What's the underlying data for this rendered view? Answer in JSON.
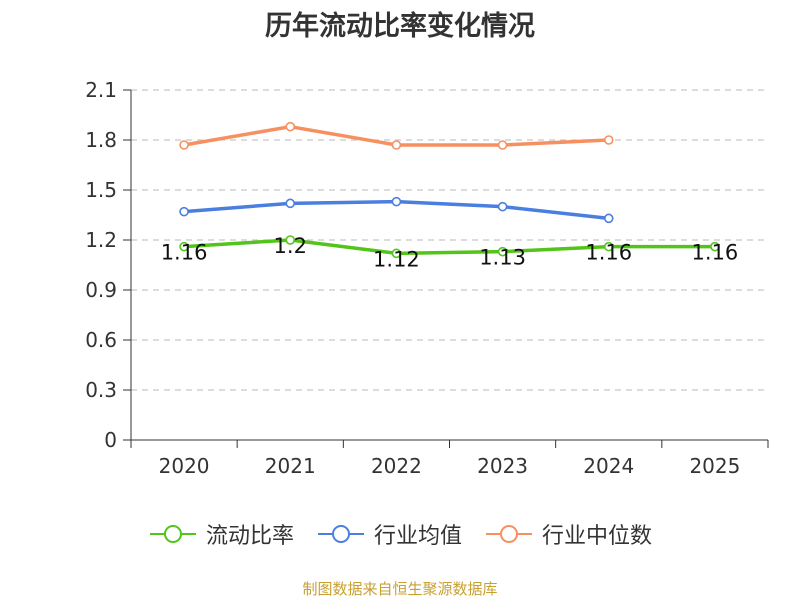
{
  "chart_data": {
    "type": "line",
    "title": "历年流动比率变化情况",
    "categories": [
      "2020",
      "2021",
      "2022",
      "2023",
      "2024",
      "2025"
    ],
    "ylim": [
      0,
      2.1
    ],
    "yticks": [
      "0",
      "0.3",
      "0.6",
      "0.9",
      "1.2",
      "1.5",
      "1.8",
      "2.1"
    ],
    "grid": true,
    "legend_position": "bottom",
    "series": [
      {
        "name": "流动比率",
        "color": "#52c41a",
        "values": [
          1.16,
          1.2,
          1.12,
          1.13,
          1.16,
          1.16
        ],
        "labels": [
          "1.16",
          "1.2",
          "1.12",
          "1.13",
          "1.16",
          "1.16"
        ]
      },
      {
        "name": "行业均值",
        "color": "#4a7fe0",
        "values": [
          1.37,
          1.42,
          1.43,
          1.4,
          1.33,
          null
        ]
      },
      {
        "name": "行业中位数",
        "color": "#f79060",
        "values": [
          1.77,
          1.88,
          1.77,
          1.77,
          1.8,
          null
        ]
      }
    ]
  },
  "footer": {
    "source": "制图数据来自恒生聚源数据库"
  }
}
